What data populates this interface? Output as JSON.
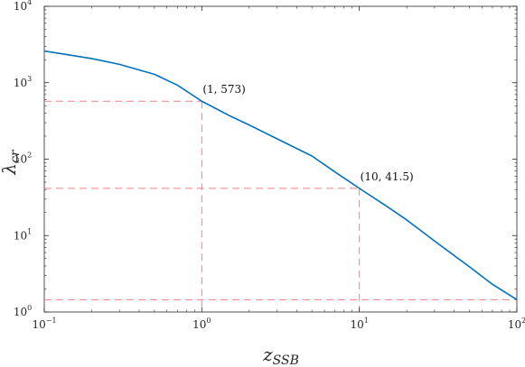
{
  "chart_data": {
    "type": "line",
    "x_scale": "log",
    "y_scale": "log",
    "xlim": [
      0.1,
      100
    ],
    "ylim": [
      1,
      10000
    ],
    "x_ticks": [
      {
        "value": 0.1,
        "base": "10",
        "exp": "−1"
      },
      {
        "value": 1,
        "base": "10",
        "exp": "0"
      },
      {
        "value": 10,
        "base": "10",
        "exp": "1"
      },
      {
        "value": 100,
        "base": "10",
        "exp": "2"
      }
    ],
    "y_ticks": [
      {
        "value": 1,
        "base": "10",
        "exp": "0"
      },
      {
        "value": 10,
        "base": "10",
        "exp": "1"
      },
      {
        "value": 100,
        "base": "10",
        "exp": "2"
      },
      {
        "value": 1000,
        "base": "10",
        "exp": "3"
      },
      {
        "value": 10000,
        "base": "10",
        "exp": "4"
      }
    ],
    "xlabel": {
      "main": "z",
      "sub": "SSB"
    },
    "ylabel": {
      "main": "λ",
      "sub": "cr"
    },
    "grid": false,
    "series": [
      {
        "color": "#0072BD",
        "x": [
          0.1,
          0.2,
          0.3,
          0.5,
          0.7,
          1,
          1.5,
          2,
          3,
          5,
          7,
          10,
          15,
          20,
          30,
          50,
          70,
          100
        ],
        "y": [
          2600,
          2070,
          1740,
          1290,
          930,
          573,
          370,
          280,
          185,
          110,
          68,
          41.5,
          24,
          16,
          8.5,
          3.9,
          2.3,
          1.45
        ]
      }
    ],
    "reference_lines": [
      {
        "color": "#F08080",
        "x": 1,
        "y": 573
      },
      {
        "color": "#F08080",
        "x": 10,
        "y": 41.5
      },
      {
        "color": "#F08080",
        "x": 100,
        "y": 1.45
      }
    ],
    "annotations": [
      {
        "x": 1,
        "y": 573,
        "text": "(1, 573)"
      },
      {
        "x": 10,
        "y": 41.5,
        "text": "(10, 41.5)"
      }
    ]
  }
}
